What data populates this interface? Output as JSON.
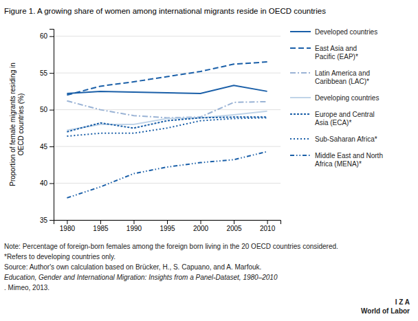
{
  "chart_data": {
    "type": "line",
    "title": "Figure 1. A growing share of women among international migrants reside in OECD countries",
    "ylabel": "Proportion of female migrants residing in\nOECD countries (%)",
    "x": [
      1980,
      1985,
      1990,
      1995,
      2000,
      2005,
      2010
    ],
    "xlim": [
      1978,
      2012
    ],
    "xticks": [
      1980,
      1985,
      1990,
      1995,
      2000,
      2005,
      2010
    ],
    "ylim": [
      35,
      61
    ],
    "yticks": [
      35,
      40,
      45,
      50,
      55,
      60
    ],
    "grid": true,
    "legend": "right",
    "series": [
      {
        "name": "Developed countries",
        "color": "#1a5fa8",
        "line_style": "solid",
        "values": [
          52.2,
          52.5,
          52.4,
          52.3,
          52.2,
          53.3,
          52.5
        ]
      },
      {
        "name": "East Asia and\nPacific (EAP)*",
        "color": "#1a5fa8",
        "line_style": "dashed",
        "values": [
          52.0,
          53.2,
          53.8,
          54.5,
          55.2,
          56.2,
          56.5
        ]
      },
      {
        "name": "Latin America and\nCaribbean (LAC)*",
        "color": "#9ab3d5",
        "line_style": "dashdot",
        "values": [
          51.2,
          50.0,
          49.2,
          48.9,
          49.0,
          51.0,
          51.1
        ]
      },
      {
        "name": "Developing countries",
        "color": "#c0d4e8",
        "line_style": "solid",
        "values": [
          47.2,
          48.0,
          48.0,
          48.8,
          48.9,
          49.3,
          49.8
        ]
      },
      {
        "name": "Europe and Central\nAsia (ECA)*",
        "color": "#1a5fa8",
        "line_style": "densely_dotted",
        "values": [
          47.0,
          48.2,
          47.5,
          48.5,
          48.9,
          49.0,
          49.0
        ]
      },
      {
        "name": "Sub-Saharan Africa*",
        "color": "#1a5fa8",
        "line_style": "dotted",
        "values": [
          46.4,
          46.8,
          46.8,
          47.5,
          48.5,
          48.8,
          48.9
        ]
      },
      {
        "name": "Middle East and North\nAfrica (MENA)*",
        "color": "#1a5fa8",
        "line_style": "dashdotdot",
        "values": [
          38.0,
          39.5,
          41.3,
          42.2,
          42.8,
          43.2,
          44.3
        ]
      }
    ],
    "annotations": [
      "Note: Percentage of foreign-born females among the foreign born living in the 20 OECD countries considered.",
      "*Refers to developing countries only.",
      "Source: Author's own calculation based on Brücker, H., S. Capuano, and A. Marfouk. ",
      "Education, Gender and International Migration: Insights from a Panel-Dataset, 1980–2010",
      ". Mimeo, 2013.",
      "I  Z  A",
      "World of Labor"
    ]
  }
}
